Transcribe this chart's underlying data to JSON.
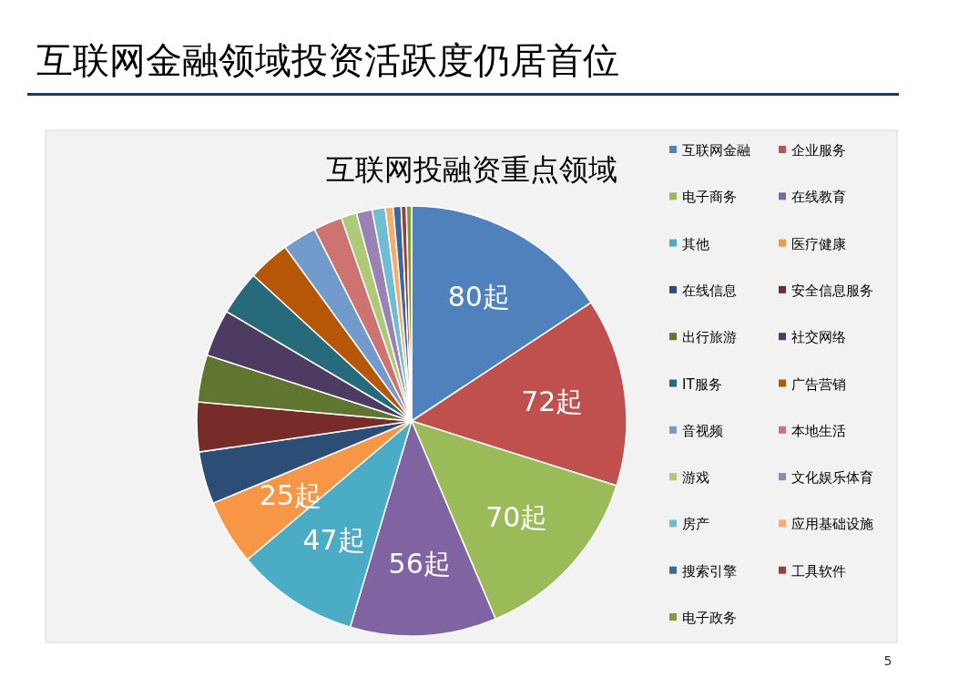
{
  "chart_data": {
    "type": "pie",
    "title": "互联网金融领域投资活跃度仍居首位",
    "subtitle": "互联网投融资重点领域",
    "categories": [
      "互联网金融",
      "企业服务",
      "电子商务",
      "在线教育",
      "其他",
      "医疗健康",
      "在线信息",
      "安全信息服务",
      "出行旅游",
      "社交网络",
      "IT服务",
      "广告营销",
      "音视频",
      "本地生活",
      "游戏",
      "文化娱乐体育",
      "房产",
      "应用基础设施",
      "搜索引擎",
      "工具软件",
      "电子政务"
    ],
    "values": [
      80,
      72,
      70,
      56,
      47,
      25,
      20,
      19,
      18,
      18,
      17,
      16,
      13,
      11,
      6,
      6,
      5,
      3,
      3,
      2,
      2
    ],
    "value_labels": [
      "80起",
      "72起",
      "70起",
      "56起",
      "47起",
      "25起",
      null,
      null,
      null,
      null,
      null,
      null,
      null,
      null,
      null,
      null,
      null,
      null,
      null,
      null,
      null
    ],
    "colors": [
      "#4f81bd",
      "#c0504d",
      "#9bbb59",
      "#8064a2",
      "#4bacc6",
      "#f79646",
      "#2c4d75",
      "#772c2a",
      "#5f7530",
      "#4d3b62",
      "#276a7c",
      "#b65708",
      "#729aca",
      "#cd7371",
      "#afc97a",
      "#9983b5",
      "#6fbdd1",
      "#f9ab6b",
      "#3a679c",
      "#9f3b38",
      "#7e9c40"
    ],
    "legend": "right",
    "annotations": [
      "5"
    ]
  }
}
